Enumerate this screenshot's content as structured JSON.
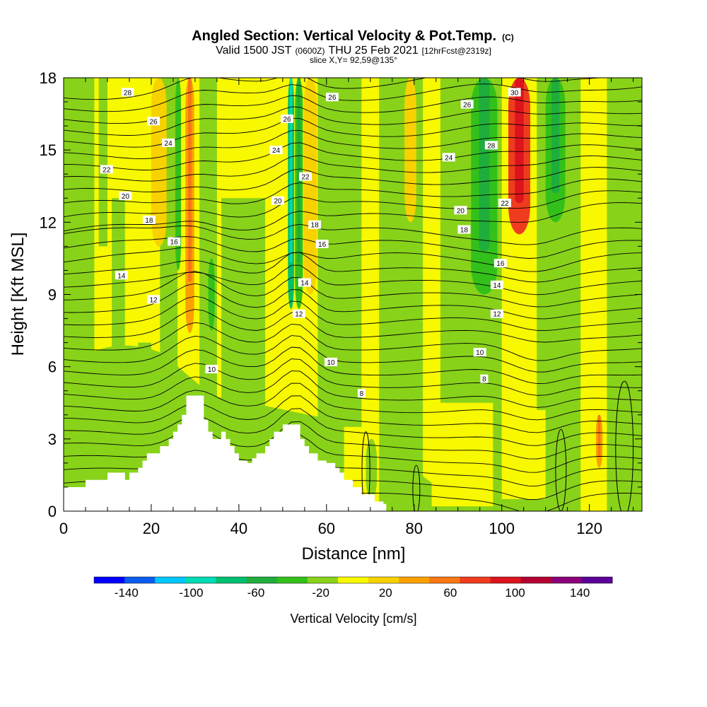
{
  "header": {
    "title": "Angled Section: Vertical Velocity & Pot.Temp.",
    "title_mark": "(C)",
    "valid_prefix": "Valid 1500 JST",
    "valid_utc": "(0600Z)",
    "valid_date": "THU 25 Feb 2021",
    "forecast": "[12hrFcst@2319z]",
    "slice": "slice X,Y= 92,59@135°"
  },
  "chart_data": {
    "type": "heatmap",
    "xlabel": "Distance [nm]",
    "ylabel": "Height [Kft MSL]",
    "xlim": [
      0,
      132
    ],
    "ylim": [
      0,
      18
    ],
    "x_ticks": [
      0,
      20,
      40,
      60,
      80,
      100,
      120
    ],
    "y_ticks": [
      0,
      3,
      6,
      9,
      12,
      15,
      18
    ],
    "colorbar": {
      "label": "Vertical Velocity [cm/s]",
      "boundaries": [
        -160,
        -140,
        -120,
        -100,
        -80,
        -60,
        -40,
        -20,
        0,
        20,
        40,
        60,
        80,
        100,
        120,
        140,
        160
      ],
      "tick_labels": [
        "-140",
        "-100",
        "-60",
        "-20",
        "20",
        "60",
        "100",
        "140"
      ],
      "tick_values": [
        -140,
        -100,
        -60,
        -20,
        20,
        60,
        100,
        140
      ],
      "colors": [
        "#0000ff",
        "#0a5cf0",
        "#00c8ff",
        "#00dcb4",
        "#00c070",
        "#1fae3c",
        "#34c01a",
        "#88d21a",
        "#f8f800",
        "#f8d200",
        "#fca000",
        "#f87814",
        "#f03c1e",
        "#dc141e",
        "#b40032",
        "#8a0078",
        "#5a0096"
      ]
    },
    "terrain_kft": [
      [
        0,
        1.0
      ],
      [
        4,
        1.0
      ],
      [
        5,
        1.3
      ],
      [
        9,
        1.3
      ],
      [
        10,
        1.6
      ],
      [
        13,
        1.6
      ],
      [
        14,
        1.3
      ],
      [
        15,
        1.6
      ],
      [
        17,
        1.8
      ],
      [
        18,
        2.1
      ],
      [
        19,
        2.4
      ],
      [
        21,
        2.4
      ],
      [
        22,
        2.7
      ],
      [
        24,
        3.0
      ],
      [
        25,
        3.3
      ],
      [
        26,
        3.6
      ],
      [
        27,
        4.0
      ],
      [
        28,
        4.8
      ],
      [
        31,
        4.8
      ],
      [
        32,
        3.8
      ],
      [
        33,
        3.3
      ],
      [
        34,
        3.0
      ],
      [
        36,
        3.3
      ],
      [
        37,
        3.0
      ],
      [
        38,
        2.7
      ],
      [
        39,
        2.4
      ],
      [
        40,
        2.1
      ],
      [
        42,
        2.0
      ],
      [
        43,
        2.2
      ],
      [
        44,
        2.4
      ],
      [
        46,
        2.7
      ],
      [
        47,
        3.0
      ],
      [
        48,
        3.3
      ],
      [
        50,
        3.6
      ],
      [
        53,
        3.6
      ],
      [
        54,
        3.0
      ],
      [
        55,
        2.7
      ],
      [
        56,
        2.4
      ],
      [
        58,
        2.1
      ],
      [
        60,
        2.0
      ],
      [
        62,
        1.8
      ],
      [
        63,
        1.6
      ],
      [
        64,
        1.3
      ],
      [
        66,
        1.0
      ],
      [
        68,
        0.7
      ],
      [
        71,
        0.4
      ],
      [
        73,
        0.3
      ]
    ],
    "vertical_velocity_bands": [
      {
        "x": [
          25.5,
          26.8
        ],
        "z": [
          10,
          18
        ],
        "value": -30
      },
      {
        "x": [
          27.8,
          29.8
        ],
        "z": [
          7.4,
          18
        ],
        "value": 55
      },
      {
        "x": [
          20.0,
          23.5
        ],
        "z": [
          11,
          18
        ],
        "value": 35
      },
      {
        "x": [
          33.0,
          34.5
        ],
        "z": [
          7.5,
          10.5
        ],
        "value": -30
      },
      {
        "x": [
          51.2,
          52.6
        ],
        "z": [
          8.4,
          18
        ],
        "value": -70
      },
      {
        "x": [
          52.8,
          54.6
        ],
        "z": [
          8.4,
          18
        ],
        "value": -40
      },
      {
        "x": [
          54.8,
          57.8
        ],
        "z": [
          9,
          18
        ],
        "value": 35
      },
      {
        "x": [
          60.5,
          62.0
        ],
        "z": [
          9,
          18
        ],
        "value": -20
      },
      {
        "x": [
          77.8,
          80.5
        ],
        "z": [
          12,
          18
        ],
        "value": 30
      },
      {
        "x": [
          93.0,
          99.0
        ],
        "z": [
          9,
          18
        ],
        "value": -40
      },
      {
        "x": [
          101.5,
          106.5
        ],
        "z": [
          11.5,
          18
        ],
        "value": 80
      },
      {
        "x": [
          110.0,
          114.5
        ],
        "z": [
          12,
          18
        ],
        "value": -40
      },
      {
        "x": [
          121.5,
          123.0
        ],
        "z": [
          1.8,
          4.0
        ],
        "value": 50
      },
      {
        "x": [
          112.0,
          117.0
        ],
        "z": [
          0,
          3.2
        ],
        "value": -20
      },
      {
        "x": [
          69.0,
          71.5
        ],
        "z": [
          0.5,
          3.0
        ],
        "value": -20
      }
    ],
    "potential_temperature_labels": [
      {
        "text": "28",
        "x": 14.6,
        "z": 17.4
      },
      {
        "text": "26",
        "x": 20.5,
        "z": 16.2
      },
      {
        "text": "24",
        "x": 23.9,
        "z": 15.3
      },
      {
        "text": "22",
        "x": 9.8,
        "z": 14.2
      },
      {
        "text": "20",
        "x": 14.1,
        "z": 13.1
      },
      {
        "text": "18",
        "x": 19.5,
        "z": 12.1
      },
      {
        "text": "16",
        "x": 25.2,
        "z": 11.2
      },
      {
        "text": "14",
        "x": 13.2,
        "z": 9.8
      },
      {
        "text": "12",
        "x": 20.5,
        "z": 8.8
      },
      {
        "text": "10",
        "x": 33.8,
        "z": 5.9
      },
      {
        "text": "26",
        "x": 51.0,
        "z": 16.3
      },
      {
        "text": "24",
        "x": 48.5,
        "z": 15.0
      },
      {
        "text": "22",
        "x": 55.2,
        "z": 13.9
      },
      {
        "text": "20",
        "x": 48.9,
        "z": 12.9
      },
      {
        "text": "18",
        "x": 57.3,
        "z": 11.9
      },
      {
        "text": "16",
        "x": 59.0,
        "z": 11.1
      },
      {
        "text": "14",
        "x": 55.0,
        "z": 9.5
      },
      {
        "text": "12",
        "x": 53.7,
        "z": 8.2
      },
      {
        "text": "10",
        "x": 61.0,
        "z": 6.2
      },
      {
        "text": "8",
        "x": 68.0,
        "z": 4.9
      },
      {
        "text": "26",
        "x": 61.3,
        "z": 17.2
      },
      {
        "text": "26",
        "x": 92.1,
        "z": 16.9
      },
      {
        "text": "24",
        "x": 87.9,
        "z": 14.7
      },
      {
        "text": "20",
        "x": 90.6,
        "z": 12.5
      },
      {
        "text": "18",
        "x": 91.4,
        "z": 11.7
      },
      {
        "text": "30",
        "x": 102.9,
        "z": 17.4
      },
      {
        "text": "28",
        "x": 97.6,
        "z": 15.2
      },
      {
        "text": "22",
        "x": 100.7,
        "z": 12.8
      },
      {
        "text": "16",
        "x": 99.7,
        "z": 10.3
      },
      {
        "text": "14",
        "x": 98.9,
        "z": 9.4
      },
      {
        "text": "12",
        "x": 98.9,
        "z": 8.2
      },
      {
        "text": "10",
        "x": 95.0,
        "z": 6.6
      },
      {
        "text": "8",
        "x": 96.0,
        "z": 5.5
      }
    ]
  }
}
